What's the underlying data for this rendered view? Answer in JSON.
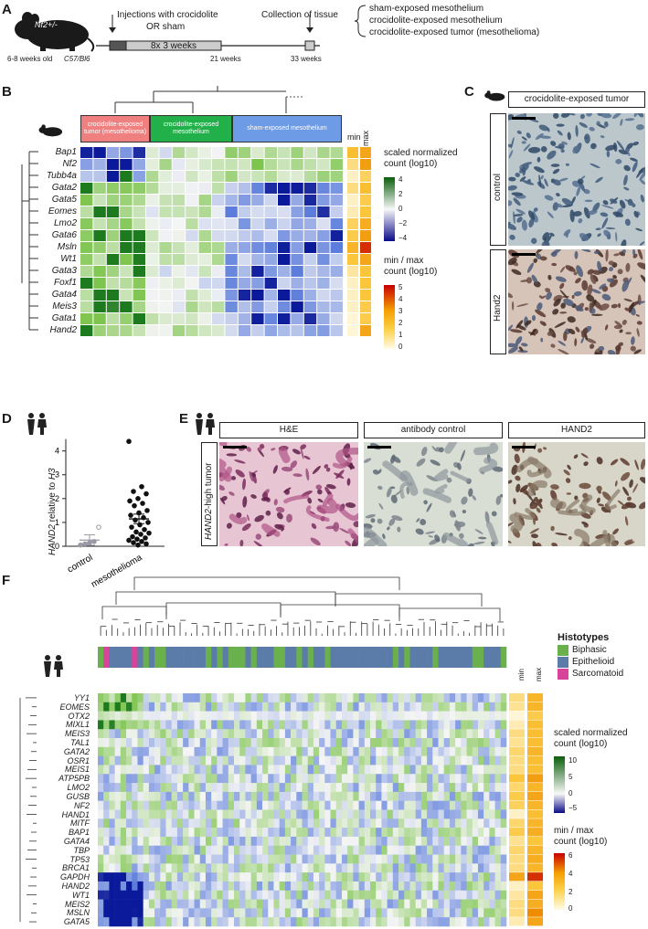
{
  "panels": {
    "A": "A",
    "B": "B",
    "C": "C",
    "D": "D",
    "E": "E",
    "F": "F"
  },
  "panelA": {
    "mouse_genotype": "Nf2+/-",
    "mouse_age": "6-8 weeks old",
    "mouse_strain": "C57/Bl6",
    "injections_label_1": "Injections with crocidolite",
    "injections_label_2": "OR sham",
    "schedule": "8x 3 weeks",
    "t1": "21 weeks",
    "t2": "33 weeks",
    "collection": "Collection of tissue",
    "outcomes": [
      "sham-exposed mesothelium",
      "crocidolite-exposed mesothelium",
      "crocidolite-exposed tumor (mesothelioma)"
    ]
  },
  "panelB": {
    "groups": [
      {
        "label": "crocidolite-exposed tumor (mesothelioma)",
        "color": "#f08080"
      },
      {
        "label": "crocidolite-exposed mesothelium",
        "color": "#22b04a"
      },
      {
        "label": "sham-exposed mesothelium",
        "color": "#6e9be6"
      }
    ],
    "genes": [
      "Bap1",
      "Nf2",
      "Tubb4a",
      "Gata2",
      "Gata5",
      "Eomes",
      "Lmo2",
      "Gata6",
      "Msln",
      "Wt1",
      "Gata3",
      "Foxf1",
      "Gata4",
      "Meis3",
      "Gata1",
      "Hand2"
    ],
    "minmax_headers": [
      "min",
      "max"
    ],
    "legend1_title_1": "scaled normalized",
    "legend1_title_2": "count (log10)",
    "legend1_ticks": [
      "4",
      "2",
      "0",
      "−2",
      "−4"
    ],
    "legend2_title_1": "min / max",
    "legend2_title_2": "count (log10)",
    "legend2_ticks": [
      "5",
      "4",
      "3",
      "2",
      "1",
      "0"
    ]
  },
  "panelC": {
    "header": "crocidolite-exposed tumor",
    "rows": [
      "control",
      "Hand2"
    ]
  },
  "panelD": {
    "ylabel_gene": "HAND2",
    "ylabel_rest": " relative to ",
    "ylabel_ref": "H3",
    "yticks": [
      "0",
      "1",
      "2",
      "3",
      "4"
    ],
    "categories": [
      "control",
      "mesothelioma"
    ]
  },
  "panelE": {
    "headers": [
      "H&E",
      "antibody control",
      "HAND2"
    ],
    "row_label_gene": "HAND2",
    "row_label_rest": "-high tumor"
  },
  "panelF": {
    "genes": [
      "YY1",
      "EOMES",
      "OTX2",
      "MIXL1",
      "MEIS3",
      "TAL1",
      "GATA2",
      "OSR1",
      "MEIS1",
      "ATP5PB",
      "LMO2",
      "GUSB",
      "NF2",
      "HAND1",
      "MITF",
      "BAP1",
      "GATA4",
      "TBP",
      "TP53",
      "BRCA1",
      "GAPDH",
      "HAND2",
      "WT1",
      "MEIS2",
      "MSLN",
      "GATA5"
    ],
    "histotypes_title": "Histotypes",
    "histotypes": [
      {
        "label": "Biphasic",
        "color": "#6ab04c"
      },
      {
        "label": "Epithelioid",
        "color": "#5b7ca8"
      },
      {
        "label": "Sarcomatoid",
        "color": "#d9449b"
      }
    ],
    "minmax_headers": [
      "min",
      "max"
    ],
    "legend1_title_1": "scaled normalized",
    "legend1_title_2": "count (log10)",
    "legend1_ticks": [
      "10",
      "5",
      "0",
      "−5"
    ],
    "legend2_title_1": "min / max",
    "legend2_title_2": "count (log10)",
    "legend2_ticks": [
      "6",
      "4",
      "2",
      "0"
    ]
  },
  "chart_data": [
    {
      "type": "scatter",
      "title": "",
      "xlabel": "",
      "ylabel": "HAND2 relative to H3",
      "categories": [
        "control",
        "mesothelioma"
      ],
      "ylim": [
        0,
        4.6
      ],
      "series": [
        {
          "name": "control",
          "values": [
            0.05,
            0.1,
            0.15,
            0.2,
            0.8
          ]
        },
        {
          "name": "mesothelioma",
          "values": [
            4.4,
            2.5,
            2.3,
            2.2,
            2.0,
            1.9,
            1.8,
            1.7,
            1.5,
            1.4,
            1.3,
            1.2,
            1.1,
            1.0,
            0.9,
            0.8,
            0.7,
            0.6,
            0.55,
            0.5,
            0.4,
            0.35,
            0.3,
            0.25,
            0.2,
            0.15,
            0.1,
            0.05
          ]
        }
      ]
    }
  ],
  "colors": {
    "heat_low": "#1c2cad",
    "heat_mid": "#f5f5f5",
    "heat_high": "#1e6e1e",
    "mm_low": "#fff8e0",
    "mm_high": "#c80000"
  }
}
